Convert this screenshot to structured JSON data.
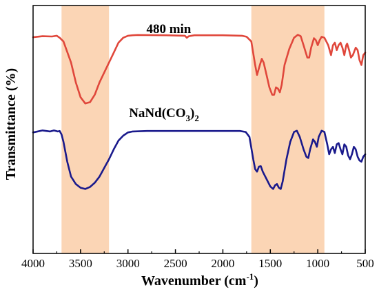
{
  "chart_data": {
    "type": "line",
    "xlabel": "Wavenumber (cm",
    "xlabel_superscript": "-1",
    "xlabel_suffix": ")",
    "ylabel": "Transmittance (%)",
    "xlim": [
      4000,
      500
    ],
    "x_reversed": true,
    "ylim": [
      0,
      1
    ],
    "y_ticks_labeled": false,
    "x_ticks": [
      4000,
      3500,
      3000,
      2500,
      2000,
      1500,
      1000,
      500
    ],
    "grid": false,
    "highlight_bands": [
      {
        "from": 3700,
        "to": 3200,
        "color": "#fbd5b5"
      },
      {
        "from": 1700,
        "to": 930,
        "color": "#fbd5b5"
      }
    ],
    "series": [
      {
        "name": "480 min",
        "color": "#e0473b",
        "label_x": 2570,
        "points": [
          [
            4000,
            0.872
          ],
          [
            3900,
            0.876
          ],
          [
            3800,
            0.875
          ],
          [
            3750,
            0.878
          ],
          [
            3720,
            0.87
          ],
          [
            3680,
            0.855
          ],
          [
            3600,
            0.77
          ],
          [
            3550,
            0.69
          ],
          [
            3500,
            0.63
          ],
          [
            3450,
            0.605
          ],
          [
            3400,
            0.61
          ],
          [
            3350,
            0.64
          ],
          [
            3300,
            0.69
          ],
          [
            3250,
            0.73
          ],
          [
            3200,
            0.77
          ],
          [
            3150,
            0.81
          ],
          [
            3100,
            0.85
          ],
          [
            3050,
            0.87
          ],
          [
            3000,
            0.878
          ],
          [
            2950,
            0.88
          ],
          [
            2900,
            0.881
          ],
          [
            2600,
            0.88
          ],
          [
            2400,
            0.878
          ],
          [
            2380,
            0.87
          ],
          [
            2360,
            0.876
          ],
          [
            2300,
            0.88
          ],
          [
            2000,
            0.88
          ],
          [
            1800,
            0.878
          ],
          [
            1750,
            0.874
          ],
          [
            1700,
            0.855
          ],
          [
            1660,
            0.76
          ],
          [
            1640,
            0.72
          ],
          [
            1610,
            0.76
          ],
          [
            1590,
            0.785
          ],
          [
            1570,
            0.77
          ],
          [
            1540,
            0.72
          ],
          [
            1510,
            0.67
          ],
          [
            1480,
            0.64
          ],
          [
            1460,
            0.64
          ],
          [
            1440,
            0.67
          ],
          [
            1420,
            0.665
          ],
          [
            1400,
            0.65
          ],
          [
            1380,
            0.68
          ],
          [
            1350,
            0.76
          ],
          [
            1300,
            0.825
          ],
          [
            1250,
            0.87
          ],
          [
            1210,
            0.882
          ],
          [
            1180,
            0.876
          ],
          [
            1150,
            0.84
          ],
          [
            1110,
            0.79
          ],
          [
            1090,
            0.79
          ],
          [
            1070,
            0.83
          ],
          [
            1040,
            0.868
          ],
          [
            1020,
            0.86
          ],
          [
            1000,
            0.84
          ],
          [
            980,
            0.86
          ],
          [
            960,
            0.874
          ],
          [
            930,
            0.87
          ],
          [
            890,
            0.84
          ],
          [
            860,
            0.8
          ],
          [
            840,
            0.84
          ],
          [
            820,
            0.85
          ],
          [
            800,
            0.82
          ],
          [
            780,
            0.84
          ],
          [
            760,
            0.85
          ],
          [
            740,
            0.83
          ],
          [
            720,
            0.8
          ],
          [
            700,
            0.84
          ],
          [
            690,
            0.846
          ],
          [
            670,
            0.82
          ],
          [
            650,
            0.79
          ],
          [
            630,
            0.8
          ],
          [
            600,
            0.83
          ],
          [
            580,
            0.82
          ],
          [
            560,
            0.78
          ],
          [
            540,
            0.76
          ],
          [
            520,
            0.8
          ],
          [
            500,
            0.81
          ]
        ]
      },
      {
        "name": "NaNd(CO3)2",
        "label_text": "NaNd(CO",
        "label_sub": "3",
        "label_close": ")",
        "label_sub2": "2",
        "color": "#1a1a8c",
        "label_x": 2620,
        "points": [
          [
            4000,
            0.488
          ],
          [
            3900,
            0.496
          ],
          [
            3820,
            0.492
          ],
          [
            3780,
            0.496
          ],
          [
            3740,
            0.492
          ],
          [
            3720,
            0.494
          ],
          [
            3700,
            0.48
          ],
          [
            3680,
            0.45
          ],
          [
            3640,
            0.37
          ],
          [
            3600,
            0.31
          ],
          [
            3550,
            0.28
          ],
          [
            3500,
            0.265
          ],
          [
            3450,
            0.26
          ],
          [
            3400,
            0.268
          ],
          [
            3350,
            0.285
          ],
          [
            3300,
            0.31
          ],
          [
            3250,
            0.345
          ],
          [
            3200,
            0.38
          ],
          [
            3150,
            0.42
          ],
          [
            3100,
            0.455
          ],
          [
            3050,
            0.475
          ],
          [
            3000,
            0.488
          ],
          [
            2950,
            0.492
          ],
          [
            2800,
            0.494
          ],
          [
            2500,
            0.494
          ],
          [
            2200,
            0.494
          ],
          [
            2000,
            0.494
          ],
          [
            1820,
            0.494
          ],
          [
            1760,
            0.49
          ],
          [
            1720,
            0.47
          ],
          [
            1680,
            0.38
          ],
          [
            1660,
            0.34
          ],
          [
            1640,
            0.33
          ],
          [
            1620,
            0.35
          ],
          [
            1600,
            0.352
          ],
          [
            1580,
            0.33
          ],
          [
            1540,
            0.3
          ],
          [
            1500,
            0.27
          ],
          [
            1470,
            0.26
          ],
          [
            1450,
            0.275
          ],
          [
            1430,
            0.28
          ],
          [
            1410,
            0.265
          ],
          [
            1390,
            0.26
          ],
          [
            1370,
            0.29
          ],
          [
            1330,
            0.38
          ],
          [
            1290,
            0.45
          ],
          [
            1250,
            0.49
          ],
          [
            1220,
            0.495
          ],
          [
            1190,
            0.47
          ],
          [
            1150,
            0.42
          ],
          [
            1120,
            0.39
          ],
          [
            1100,
            0.385
          ],
          [
            1080,
            0.42
          ],
          [
            1050,
            0.46
          ],
          [
            1030,
            0.45
          ],
          [
            1010,
            0.43
          ],
          [
            990,
            0.47
          ],
          [
            960,
            0.495
          ],
          [
            930,
            0.49
          ],
          [
            900,
            0.44
          ],
          [
            880,
            0.4
          ],
          [
            860,
            0.42
          ],
          [
            840,
            0.43
          ],
          [
            820,
            0.405
          ],
          [
            800,
            0.44
          ],
          [
            780,
            0.445
          ],
          [
            760,
            0.42
          ],
          [
            740,
            0.4
          ],
          [
            720,
            0.44
          ],
          [
            700,
            0.43
          ],
          [
            680,
            0.395
          ],
          [
            660,
            0.38
          ],
          [
            640,
            0.4
          ],
          [
            620,
            0.43
          ],
          [
            600,
            0.42
          ],
          [
            580,
            0.39
          ],
          [
            560,
            0.375
          ],
          [
            540,
            0.37
          ],
          [
            520,
            0.39
          ],
          [
            500,
            0.4
          ]
        ]
      }
    ]
  }
}
